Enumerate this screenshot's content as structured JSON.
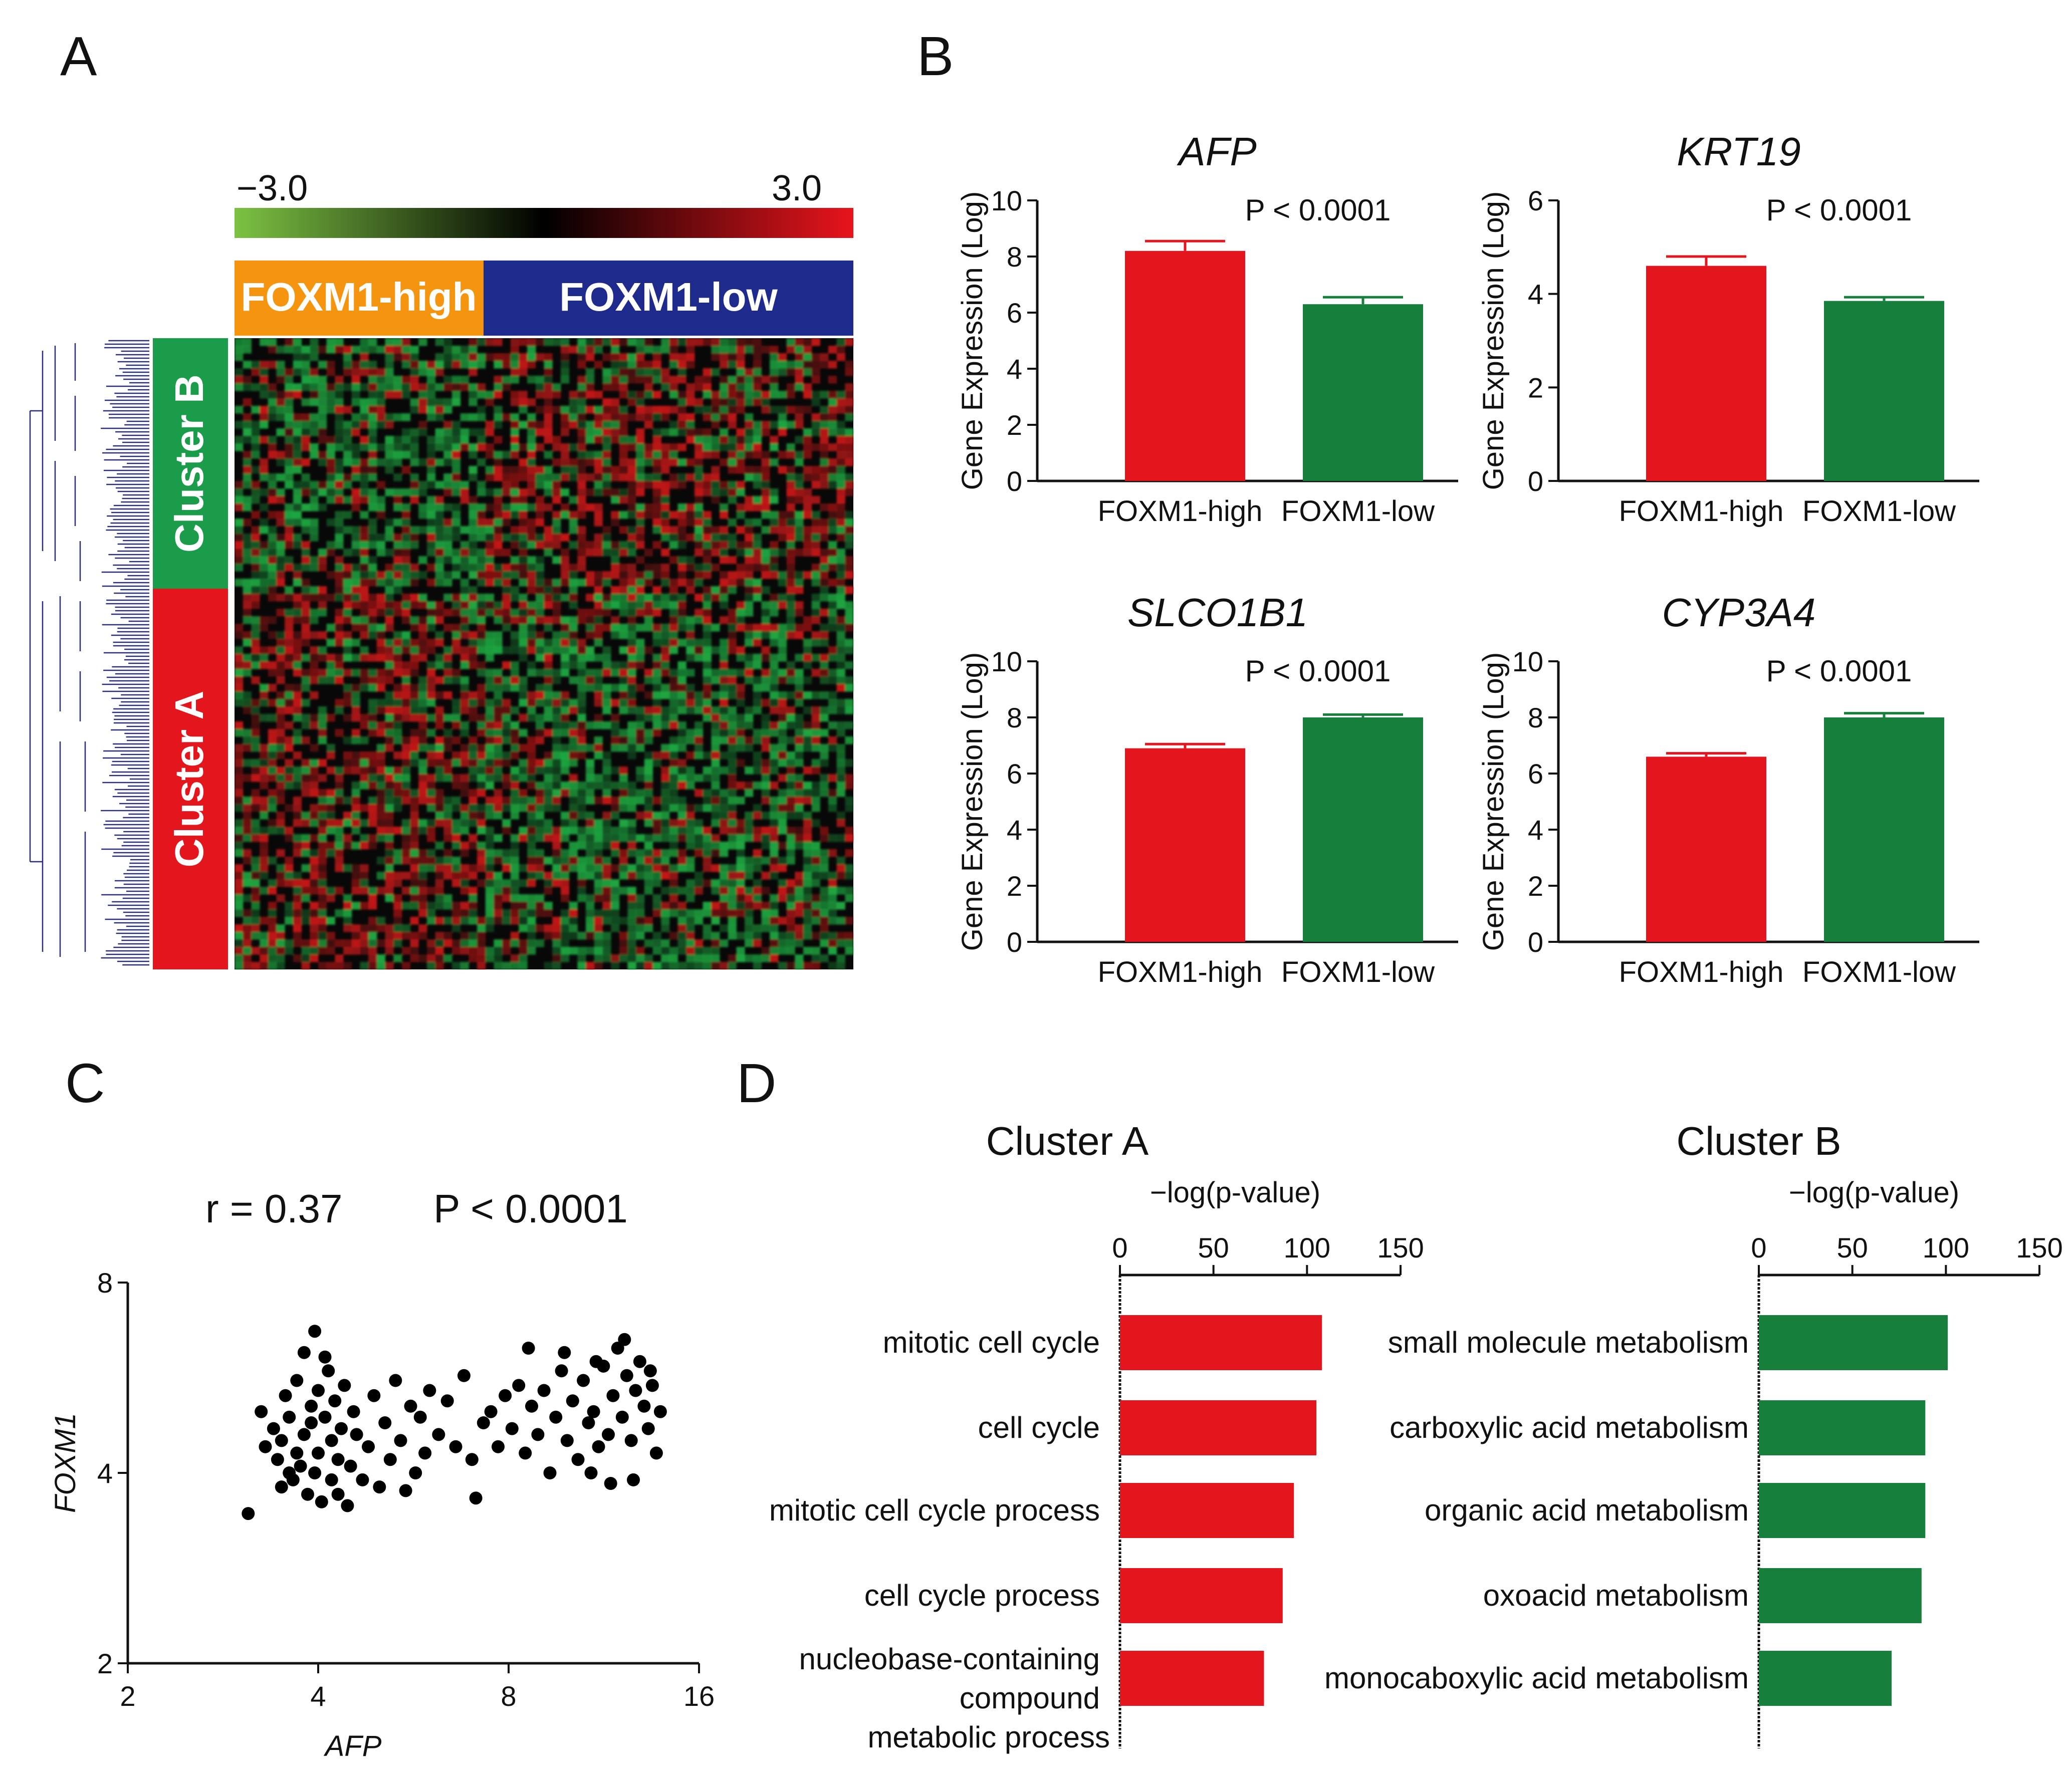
{
  "panels": {
    "a": "A",
    "b": "B",
    "c": "C",
    "d": "D"
  },
  "colors": {
    "red": "#e3161e",
    "green": "#177f3c",
    "orange": "#f5940e",
    "navy": "#1f2b8c",
    "cluster_b": "#1a9c4a",
    "cluster_a": "#e3161e",
    "dendro": "#2a2f78",
    "hm_green": "#22c04a",
    "hm_red": "#e01a1a",
    "hm_black": "#080808",
    "cb_left": "#7cc242",
    "cb_mid": "#000000",
    "cb_right": "#e8141c"
  },
  "heatmap": {
    "colorbar_min": "−3.0",
    "colorbar_max": "3.0",
    "groups": [
      {
        "label": "FOXM1-high"
      },
      {
        "label": "FOXM1-low"
      }
    ],
    "clusters": [
      {
        "label": "Cluster B"
      },
      {
        "label": "Cluster A"
      }
    ]
  },
  "chart_data": [
    {
      "id": "AFP",
      "type": "bar",
      "title": "AFP",
      "categories": [
        "FOXM1-high",
        "FOXM1-low"
      ],
      "values": [
        8.2,
        6.3
      ],
      "errors": [
        0.35,
        0.25
      ],
      "ylabel": "Gene Expression (Log)",
      "ylim": [
        0,
        10
      ],
      "yticks": [
        "0",
        "2",
        "4",
        "6",
        "8",
        "10"
      ],
      "annotation": "P < 0.0001"
    },
    {
      "id": "KRT19",
      "type": "bar",
      "title": "KRT19",
      "categories": [
        "FOXM1-high",
        "FOXM1-low"
      ],
      "values": [
        4.6,
        3.85
      ],
      "errors": [
        0.2,
        0.08
      ],
      "ylabel": "Gene Expression (Log)",
      "ylim": [
        0,
        6
      ],
      "yticks": [
        "0",
        "2",
        "4",
        "6"
      ],
      "annotation": "P < 0.0001"
    },
    {
      "id": "SLCO1B1",
      "type": "bar",
      "title": "SLCO1B1",
      "categories": [
        "FOXM1-high",
        "FOXM1-low"
      ],
      "values": [
        6.9,
        8.0
      ],
      "errors": [
        0.15,
        0.1
      ],
      "ylabel": "Gene Expression (Log)",
      "ylim": [
        0,
        10
      ],
      "yticks": [
        "0",
        "2",
        "4",
        "6",
        "8",
        "10"
      ],
      "annotation": "P < 0.0001"
    },
    {
      "id": "CYP3A4",
      "type": "bar",
      "title": "CYP3A4",
      "categories": [
        "FOXM1-high",
        "FOXM1-low"
      ],
      "values": [
        6.6,
        8.0
      ],
      "errors": [
        0.12,
        0.15
      ],
      "ylabel": "Gene Expression (Log)",
      "ylim": [
        0,
        10
      ],
      "yticks": [
        "0",
        "2",
        "4",
        "6",
        "8",
        "10"
      ],
      "annotation": "P < 0.0001"
    },
    {
      "id": "scatter",
      "type": "scatter",
      "xlabel": "AFP",
      "ylabel": "FOXM1",
      "xscale": "log2",
      "xlim": [
        2,
        16
      ],
      "ylim": [
        2,
        8
      ],
      "xticks": [
        "2",
        "4",
        "8",
        "16"
      ],
      "yticks": [
        "2",
        "4",
        "8"
      ],
      "stat_r": "r = 0.37",
      "stat_p": "P < 0.0001",
      "points": [
        [
          3.1,
          3.45
        ],
        [
          3.25,
          5.0
        ],
        [
          3.3,
          4.4
        ],
        [
          3.4,
          4.7
        ],
        [
          3.45,
          4.2
        ],
        [
          3.5,
          3.8
        ],
        [
          3.5,
          4.5
        ],
        [
          3.55,
          5.3
        ],
        [
          3.6,
          4.0
        ],
        [
          3.6,
          4.9
        ],
        [
          3.65,
          3.9
        ],
        [
          3.7,
          4.3
        ],
        [
          3.7,
          5.6
        ],
        [
          3.75,
          4.1
        ],
        [
          3.8,
          6.2
        ],
        [
          3.8,
          4.6
        ],
        [
          3.85,
          3.7
        ],
        [
          3.9,
          4.8
        ],
        [
          3.9,
          5.1
        ],
        [
          3.95,
          4.0
        ],
        [
          3.95,
          6.7
        ],
        [
          4.0,
          5.4
        ],
        [
          4.0,
          4.3
        ],
        [
          4.05,
          3.6
        ],
        [
          4.1,
          4.9
        ],
        [
          4.1,
          6.1
        ],
        [
          4.15,
          5.8
        ],
        [
          4.2,
          4.5
        ],
        [
          4.2,
          3.9
        ],
        [
          4.25,
          5.2
        ],
        [
          4.3,
          4.2
        ],
        [
          4.3,
          3.7
        ],
        [
          4.35,
          4.7
        ],
        [
          4.4,
          5.5
        ],
        [
          4.45,
          3.55
        ],
        [
          4.5,
          4.1
        ],
        [
          4.55,
          5.0
        ],
        [
          4.6,
          4.6
        ],
        [
          4.7,
          3.9
        ],
        [
          4.8,
          4.4
        ],
        [
          4.9,
          5.3
        ],
        [
          5.0,
          3.8
        ],
        [
          5.1,
          4.8
        ],
        [
          5.2,
          4.2
        ],
        [
          5.3,
          5.6
        ],
        [
          5.4,
          4.5
        ],
        [
          5.5,
          3.75
        ],
        [
          5.6,
          5.1
        ],
        [
          5.7,
          4.0
        ],
        [
          5.8,
          4.9
        ],
        [
          5.9,
          4.3
        ],
        [
          6.0,
          5.4
        ],
        [
          6.2,
          4.6
        ],
        [
          6.4,
          5.2
        ],
        [
          6.6,
          4.4
        ],
        [
          6.8,
          5.7
        ],
        [
          7.0,
          4.2
        ],
        [
          7.1,
          3.65
        ],
        [
          7.3,
          4.8
        ],
        [
          7.5,
          5.0
        ],
        [
          7.7,
          4.4
        ],
        [
          7.9,
          5.3
        ],
        [
          8.1,
          4.7
        ],
        [
          8.3,
          5.5
        ],
        [
          8.5,
          4.3
        ],
        [
          8.7,
          5.1
        ],
        [
          8.9,
          4.6
        ],
        [
          9.1,
          5.4
        ],
        [
          9.3,
          4.0
        ],
        [
          9.5,
          4.9
        ],
        [
          9.7,
          5.8
        ],
        [
          9.9,
          4.5
        ],
        [
          10.1,
          5.2
        ],
        [
          10.3,
          4.2
        ],
        [
          10.5,
          5.6
        ],
        [
          10.7,
          4.8
        ],
        [
          10.9,
          5.0
        ],
        [
          11.1,
          4.4
        ],
        [
          11.3,
          5.9
        ],
        [
          11.5,
          4.6
        ],
        [
          11.7,
          5.3
        ],
        [
          11.9,
          6.3
        ],
        [
          12.1,
          4.9
        ],
        [
          12.3,
          5.7
        ],
        [
          12.5,
          4.5
        ],
        [
          12.7,
          5.4
        ],
        [
          12.9,
          6.0
        ],
        [
          13.1,
          5.1
        ],
        [
          13.3,
          4.7
        ],
        [
          13.5,
          5.5
        ],
        [
          13.7,
          4.3
        ],
        [
          13.9,
          5.0
        ],
        [
          11.6,
          3.85
        ],
        [
          10.8,
          4.0
        ],
        [
          12.6,
          3.9
        ],
        [
          9.8,
          6.2
        ],
        [
          12.2,
          6.5
        ],
        [
          13.4,
          5.8
        ],
        [
          11.0,
          6.0
        ],
        [
          8.6,
          6.3
        ]
      ]
    },
    {
      "id": "go_a",
      "type": "bar-horizontal",
      "title": "Cluster A",
      "xlabel": "−log(p-value)",
      "xlim": [
        0,
        150
      ],
      "xticks": [
        "0",
        "50",
        "100",
        "150"
      ],
      "categories": [
        {
          "lines": [
            "mitotic cell cycle"
          ]
        },
        {
          "lines": [
            "cell cycle"
          ]
        },
        {
          "lines": [
            "mitotic cell cycle process"
          ]
        },
        {
          "lines": [
            "cell cycle process"
          ]
        },
        {
          "lines": [
            "nucleobase-containing",
            "compound",
            "metabolic process"
          ]
        }
      ],
      "values": [
        108,
        105,
        93,
        87,
        77
      ]
    },
    {
      "id": "go_b",
      "type": "bar-horizontal",
      "title": "Cluster B",
      "xlabel": "−log(p-value)",
      "xlim": [
        0,
        150
      ],
      "xticks": [
        "0",
        "50",
        "100",
        "150"
      ],
      "categories": [
        {
          "lines": [
            "small molecule metabolism"
          ]
        },
        {
          "lines": [
            "carboxylic acid metabolism"
          ]
        },
        {
          "lines": [
            "organic acid metabolism"
          ]
        },
        {
          "lines": [
            "oxoacid metabolism"
          ]
        },
        {
          "lines": [
            "monocaboxylic acid metabolism"
          ]
        }
      ],
      "values": [
        101,
        89,
        89,
        87,
        71
      ]
    }
  ]
}
